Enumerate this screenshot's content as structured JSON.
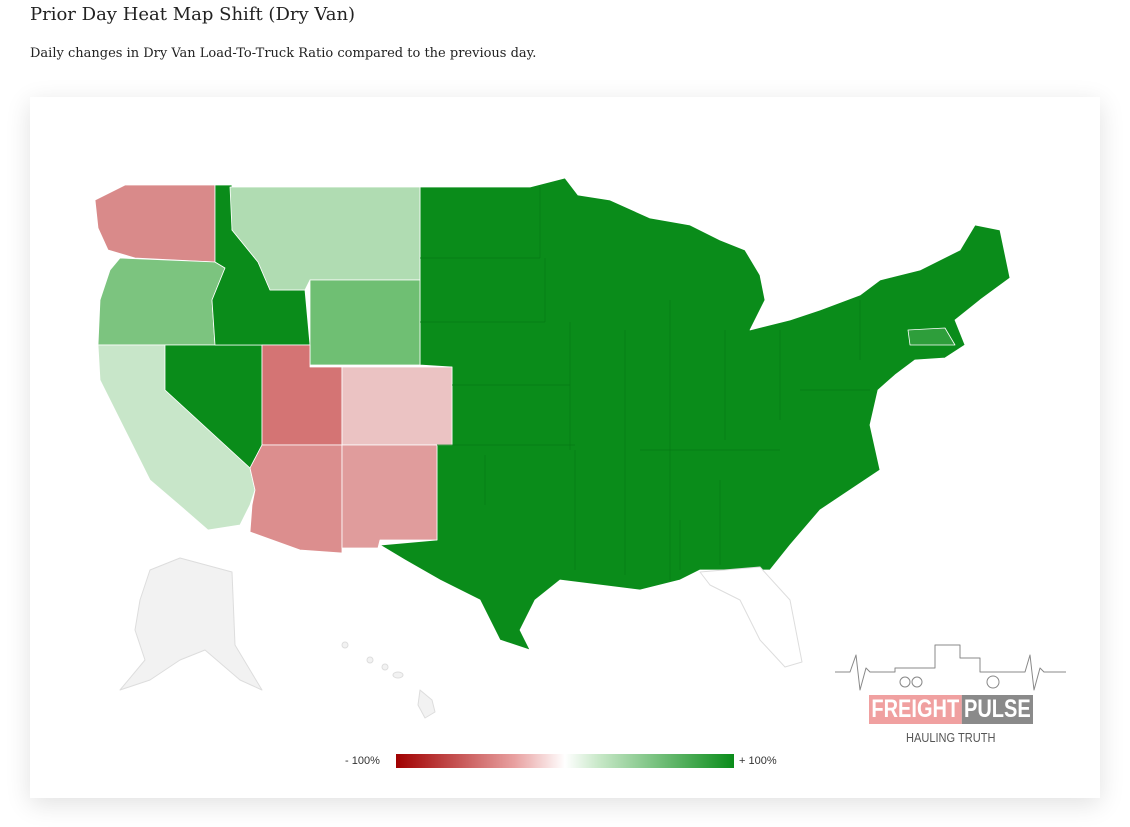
{
  "title": "Prior Day Heat Map Shift (Dry Van)",
  "subtitle": "Daily changes in Dry Van Load-To-Truck Ratio compared to the previous day.",
  "legend": {
    "min": "- 100%",
    "max": "+ 100%",
    "min_color": "#a00000",
    "max_color": "#0a8c1a"
  },
  "logo": {
    "word1": "FREIGHT",
    "word2": "PULSE",
    "tagline": "HAULING TRUTH"
  },
  "states": {
    "WA": {
      "color": "#d98a8a"
    },
    "OR": {
      "color": "#7cc47f"
    },
    "CA": {
      "color": "#c8e6c9"
    },
    "NV": {
      "color": "#0a8c1a"
    },
    "ID": {
      "color": "#0a8c1a"
    },
    "MT": {
      "color": "#b0dcb2"
    },
    "WY": {
      "color": "#6fbf73"
    },
    "UT": {
      "color": "#d47474"
    },
    "CO": {
      "color": "#ebc3c3"
    },
    "AZ": {
      "color": "#dc8e8e"
    },
    "NM": {
      "color": "#e09c9c"
    },
    "EAST": {
      "color": "#0a8c1a"
    },
    "MA": {
      "color": "#2e9e3b"
    },
    "FL": {
      "color": "#ffffff"
    },
    "AK": {
      "color": "#f2f2f2"
    },
    "HI": {
      "color": "#f2f2f2"
    }
  }
}
